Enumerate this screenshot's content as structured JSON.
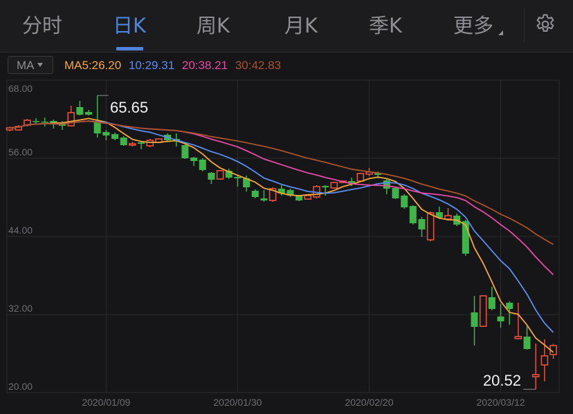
{
  "tabs": [
    {
      "label": "分时",
      "active": false
    },
    {
      "label": "日K",
      "active": true
    },
    {
      "label": "周K",
      "active": false
    },
    {
      "label": "月K",
      "active": false
    },
    {
      "label": "季K",
      "active": false
    },
    {
      "label": "更多",
      "active": false
    }
  ],
  "settings_icon": "gear-icon",
  "indicator": {
    "selector_label": "MA",
    "ma5": "MA5:26.20",
    "ma10": "10:29.31",
    "ma20": "20:38.21",
    "ma30": "30:42.83"
  },
  "colors": {
    "accent": "#4f84dc",
    "up": "#e8513d",
    "down": "#3fb549",
    "ma5": "#f5a83a",
    "ma10": "#5b8def",
    "ma20": "#e64aa6",
    "ma30": "#a9532c"
  },
  "chart_data": {
    "type": "candlestick",
    "y_ticks": [
      "68.00",
      "56.00",
      "44.00",
      "32.00",
      "20.00"
    ],
    "ylim": [
      20,
      68
    ],
    "x_ticks": [
      {
        "index": 11,
        "label": "2020/01/09"
      },
      {
        "index": 26,
        "label": "2020/01/30"
      },
      {
        "index": 41,
        "label": "2020/02/20"
      },
      {
        "index": 56,
        "label": "2020/03/12"
      }
    ],
    "grid": true,
    "columns": [
      "open",
      "high",
      "low",
      "close"
    ],
    "candles": [
      [
        60.35,
        60.88,
        60.14,
        60.67
      ],
      [
        60.35,
        61.09,
        60.24,
        60.88
      ],
      [
        61.09,
        62.05,
        60.88,
        61.84
      ],
      [
        61.73,
        62.16,
        61.2,
        61.63
      ],
      [
        61.63,
        62.26,
        60.88,
        61.52
      ],
      [
        61.73,
        61.95,
        60.56,
        61.2
      ],
      [
        61.52,
        61.73,
        60.35,
        60.99
      ],
      [
        60.99,
        64.07,
        60.88,
        63.01
      ],
      [
        63.86,
        64.81,
        62.58,
        62.69
      ],
      [
        63.11,
        63.43,
        62.58,
        62.69
      ],
      [
        61.52,
        65.65,
        59.18,
        59.82
      ],
      [
        60.03,
        60.35,
        58.76,
        59.5
      ],
      [
        59.71,
        59.93,
        58.76,
        58.97
      ],
      [
        59.18,
        59.4,
        57.91,
        58.02
      ],
      [
        58.02,
        58.55,
        57.8,
        58.23
      ],
      [
        58.44,
        58.55,
        57.38,
        58.23
      ],
      [
        57.91,
        58.97,
        57.7,
        58.76
      ],
      [
        58.44,
        59.08,
        58.34,
        58.97
      ],
      [
        59.61,
        59.82,
        58.55,
        58.76
      ],
      [
        58.97,
        59.82,
        57.8,
        58.76
      ],
      [
        58.02,
        58.12,
        55.89,
        56.0
      ],
      [
        56.11,
        56.21,
        54.83,
        55.58
      ],
      [
        55.79,
        56.0,
        53.98,
        54.19
      ],
      [
        53.77,
        53.88,
        52.07,
        52.71
      ],
      [
        52.81,
        54.19,
        52.71,
        54.09
      ],
      [
        54.09,
        54.41,
        52.81,
        53.03
      ],
      [
        53.13,
        53.35,
        51.65,
        52.92
      ],
      [
        52.92,
        53.35,
        50.9,
        51.54
      ],
      [
        51.01,
        51.22,
        49.84,
        50.05
      ],
      [
        49.84,
        51.12,
        49.31,
        49.52
      ],
      [
        49.52,
        51.54,
        49.31,
        51.33
      ],
      [
        51.33,
        51.86,
        50.27,
        50.59
      ],
      [
        51.12,
        51.33,
        50.05,
        50.27
      ],
      [
        50.27,
        50.37,
        49.42,
        49.52
      ],
      [
        49.73,
        50.37,
        49.63,
        50.27
      ],
      [
        50.05,
        51.86,
        49.84,
        51.65
      ],
      [
        51.75,
        51.86,
        50.27,
        51.54
      ],
      [
        51.44,
        52.39,
        51.33,
        52.28
      ],
      [
        52.28,
        52.6,
        52.18,
        52.5
      ],
      [
        52.5,
        53.03,
        51.75,
        52.07
      ],
      [
        52.5,
        53.77,
        52.39,
        53.66
      ],
      [
        53.56,
        54.51,
        53.24,
        53.88
      ],
      [
        53.77,
        53.98,
        52.92,
        53.45
      ],
      [
        52.6,
        52.81,
        50.48,
        51.33
      ],
      [
        51.44,
        51.65,
        49.73,
        49.84
      ],
      [
        50.27,
        50.48,
        48.25,
        48.46
      ],
      [
        48.67,
        48.78,
        45.81,
        46.02
      ],
      [
        46.66,
        46.98,
        43.9,
        45.07
      ],
      [
        43.47,
        47.82,
        43.26,
        47.61
      ],
      [
        47.72,
        48.57,
        46.66,
        46.87
      ],
      [
        46.66,
        48.36,
        46.55,
        47.19
      ],
      [
        47.19,
        47.51,
        45.6,
        45.81
      ],
      [
        46.34,
        46.55,
        41.03,
        41.35
      ],
      [
        32.33,
        34.87,
        27.24,
        30.1
      ],
      [
        30.2,
        34.98,
        30.1,
        34.87
      ],
      [
        34.66,
        36.25,
        32.65,
        32.86
      ],
      [
        31.7,
        33.6,
        29.99,
        30.95
      ],
      [
        33.81,
        34.03,
        30.43,
        32.86
      ],
      [
        28.3,
        33.81,
        28.19,
        28.61
      ],
      [
        28.61,
        30.2,
        26.6,
        26.7
      ],
      [
        22.45,
        27.55,
        20.52,
        22.77
      ],
      [
        24.26,
        28.19,
        21.72,
        25.65
      ],
      [
        25.86,
        27.5,
        25.2,
        27.23
      ]
    ],
    "moving_averages": [
      {
        "name": "MA5",
        "period": 5
      },
      {
        "name": "10",
        "period": 10
      },
      {
        "name": "20",
        "period": 20
      },
      {
        "name": "30",
        "period": 30
      }
    ],
    "annotations": {
      "high_label": "65.65",
      "low_label": "20.52"
    }
  }
}
